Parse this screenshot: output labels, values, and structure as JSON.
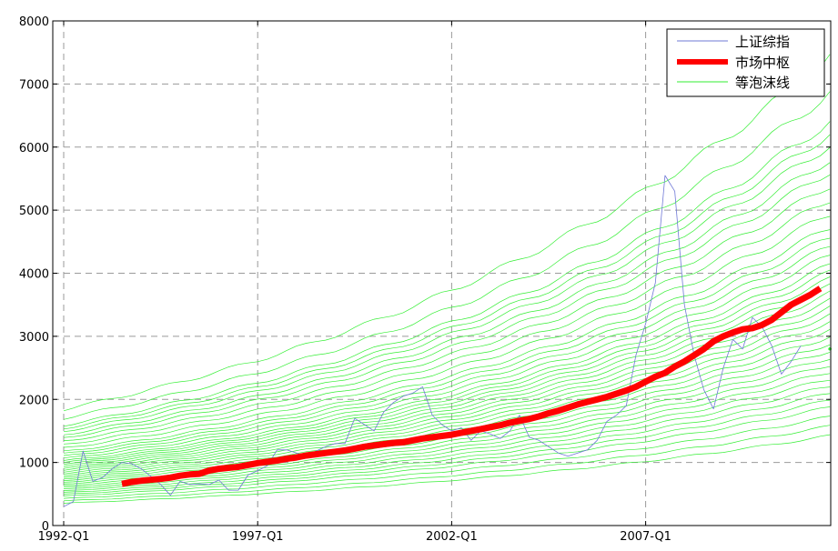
{
  "chart_data": {
    "type": "line",
    "x_start": "1992-Q1",
    "x_ticks": [
      {
        "label": "1992-Q1",
        "q": 0
      },
      {
        "label": "1997-Q1",
        "q": 20
      },
      {
        "label": "2002-Q1",
        "q": 40
      },
      {
        "label": "2007-Q1",
        "q": 60
      }
    ],
    "xlim_quarters": [
      0,
      79
    ],
    "ylim": [
      0,
      8000
    ],
    "y_ticks": [
      0,
      1000,
      2000,
      3000,
      4000,
      5000,
      6000,
      7000,
      8000
    ],
    "grid": true,
    "legend": {
      "position": "top-right",
      "entries": [
        {
          "label": "上证综指",
          "series": "sz"
        },
        {
          "label": "市场中枢",
          "series": "center"
        },
        {
          "label": "等泡沫线",
          "series": "bubble"
        }
      ]
    },
    "colors": {
      "sz": "#6f78d6",
      "center": "#ff0000",
      "bubble": "#33ee33",
      "grid": "#9a9a9a"
    },
    "series": [
      {
        "key": "sz",
        "start_q": 0,
        "values": [
          300,
          380,
          1180,
          700,
          760,
          900,
          1000,
          980,
          900,
          780,
          650,
          480,
          700,
          650,
          660,
          650,
          720,
          560,
          560,
          800,
          870,
          950,
          1200,
          1200,
          1150,
          1100,
          1180,
          1250,
          1300,
          1300,
          1700,
          1600,
          1500,
          1800,
          1950,
          2050,
          2100,
          2200,
          1750,
          1600,
          1500,
          1550,
          1350,
          1500,
          1450,
          1380,
          1500,
          1750,
          1400,
          1350,
          1250,
          1150,
          1100,
          1150,
          1200,
          1350,
          1650,
          1750,
          1900,
          2700,
          3200,
          3850,
          5550,
          5300,
          3500,
          2700,
          2150,
          1850,
          2500,
          2950,
          2800,
          3300,
          3150,
          2850,
          2400,
          2600,
          2850
        ]
      },
      {
        "key": "center",
        "start_q": 6,
        "values": [
          660,
          690,
          710,
          725,
          740,
          760,
          790,
          810,
          820,
          870,
          900,
          915,
          930,
          960,
          990,
          1010,
          1030,
          1060,
          1080,
          1110,
          1130,
          1150,
          1170,
          1190,
          1220,
          1250,
          1270,
          1290,
          1310,
          1320,
          1350,
          1380,
          1400,
          1420,
          1440,
          1470,
          1500,
          1530,
          1560,
          1590,
          1630,
          1660,
          1690,
          1730,
          1780,
          1820,
          1870,
          1920,
          1960,
          2000,
          2040,
          2090,
          2140,
          2200,
          2280,
          2360,
          2420,
          2520,
          2600,
          2700,
          2800,
          2920,
          3000,
          3060,
          3110,
          3130,
          3180,
          3260,
          3380,
          3500,
          3580,
          3660,
          3760
        ]
      }
    ],
    "bubble_band": {
      "start_q": 0,
      "base_start": 930,
      "base_end": 3750,
      "factors": [
        0.38,
        0.42,
        0.46,
        0.5,
        0.53,
        0.56,
        0.59,
        0.62,
        0.65,
        0.68,
        0.71,
        0.74,
        0.77,
        0.8,
        0.83,
        0.86,
        0.89,
        0.92,
        0.95,
        0.98,
        1.01,
        1.04,
        1.07,
        1.1,
        1.14,
        1.18,
        1.22,
        1.26,
        1.32,
        1.38,
        1.44,
        1.5,
        1.55,
        1.61,
        1.66,
        1.71,
        1.83,
        1.98
      ],
      "end_q": 79,
      "isolated_point": {
        "q": 79,
        "value": 2800
      }
    }
  }
}
